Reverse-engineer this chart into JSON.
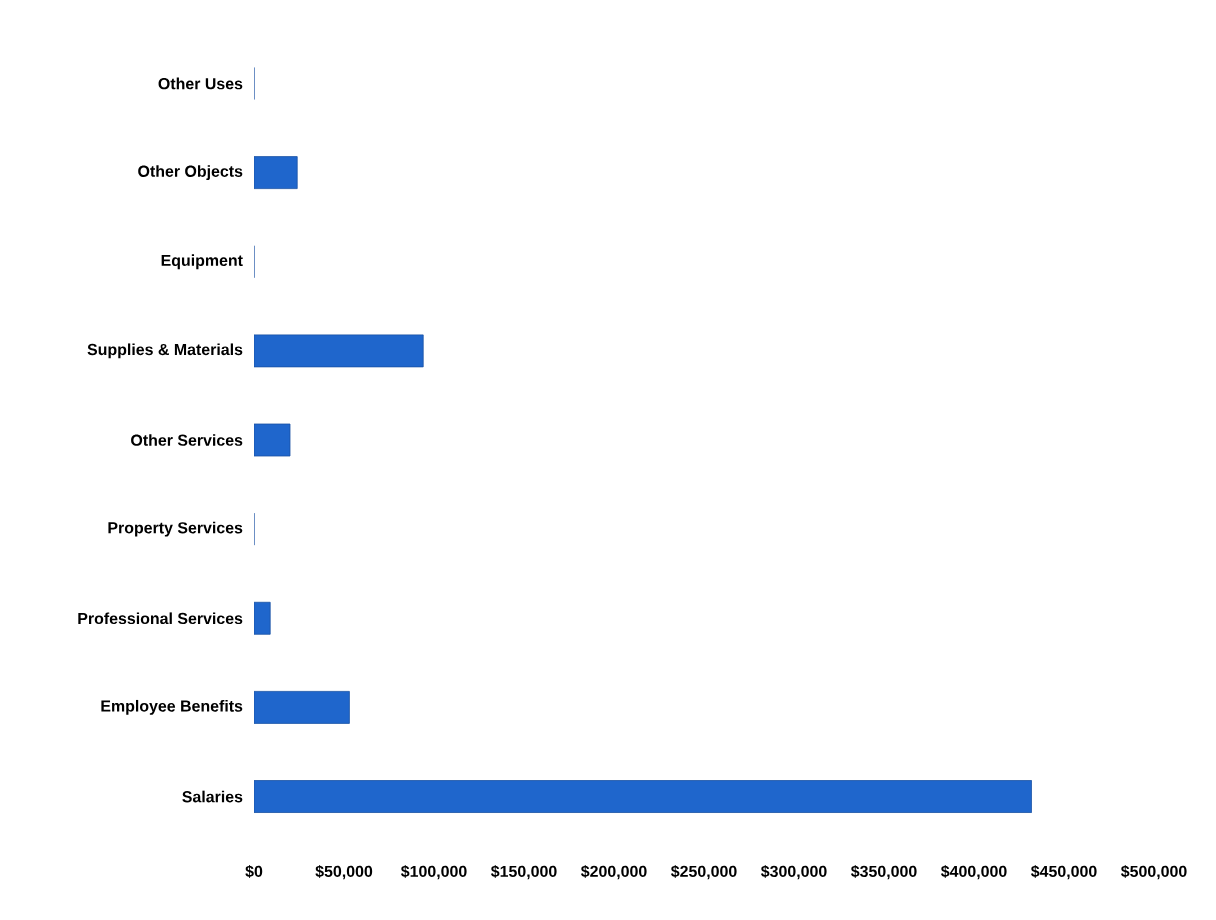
{
  "chart_data": {
    "type": "bar",
    "orientation": "horizontal",
    "categories": [
      "Other Uses",
      "Other Objects",
      "Equipment",
      "Supplies & Materials",
      "Other Services",
      "Property Services",
      "Professional Services",
      "Employee Benefits",
      "Salaries"
    ],
    "values": [
      0,
      24000,
      0,
      94000,
      20000,
      0,
      9000,
      53000,
      432000
    ],
    "color": "#1f66cc",
    "xlim": [
      0,
      500000
    ],
    "xticks": [
      {
        "value": 0,
        "label": "$0"
      },
      {
        "value": 50000,
        "label": "$50,000"
      },
      {
        "value": 100000,
        "label": "$100,000"
      },
      {
        "value": 150000,
        "label": "$150,000"
      },
      {
        "value": 200000,
        "label": "$200,000"
      },
      {
        "value": 250000,
        "label": "$250,000"
      },
      {
        "value": 300000,
        "label": "$300,000"
      },
      {
        "value": 350000,
        "label": "$350,000"
      },
      {
        "value": 400000,
        "label": "$400,000"
      },
      {
        "value": 450000,
        "label": "$450,000"
      },
      {
        "value": 500000,
        "label": "$500,000"
      }
    ],
    "grid": false
  }
}
